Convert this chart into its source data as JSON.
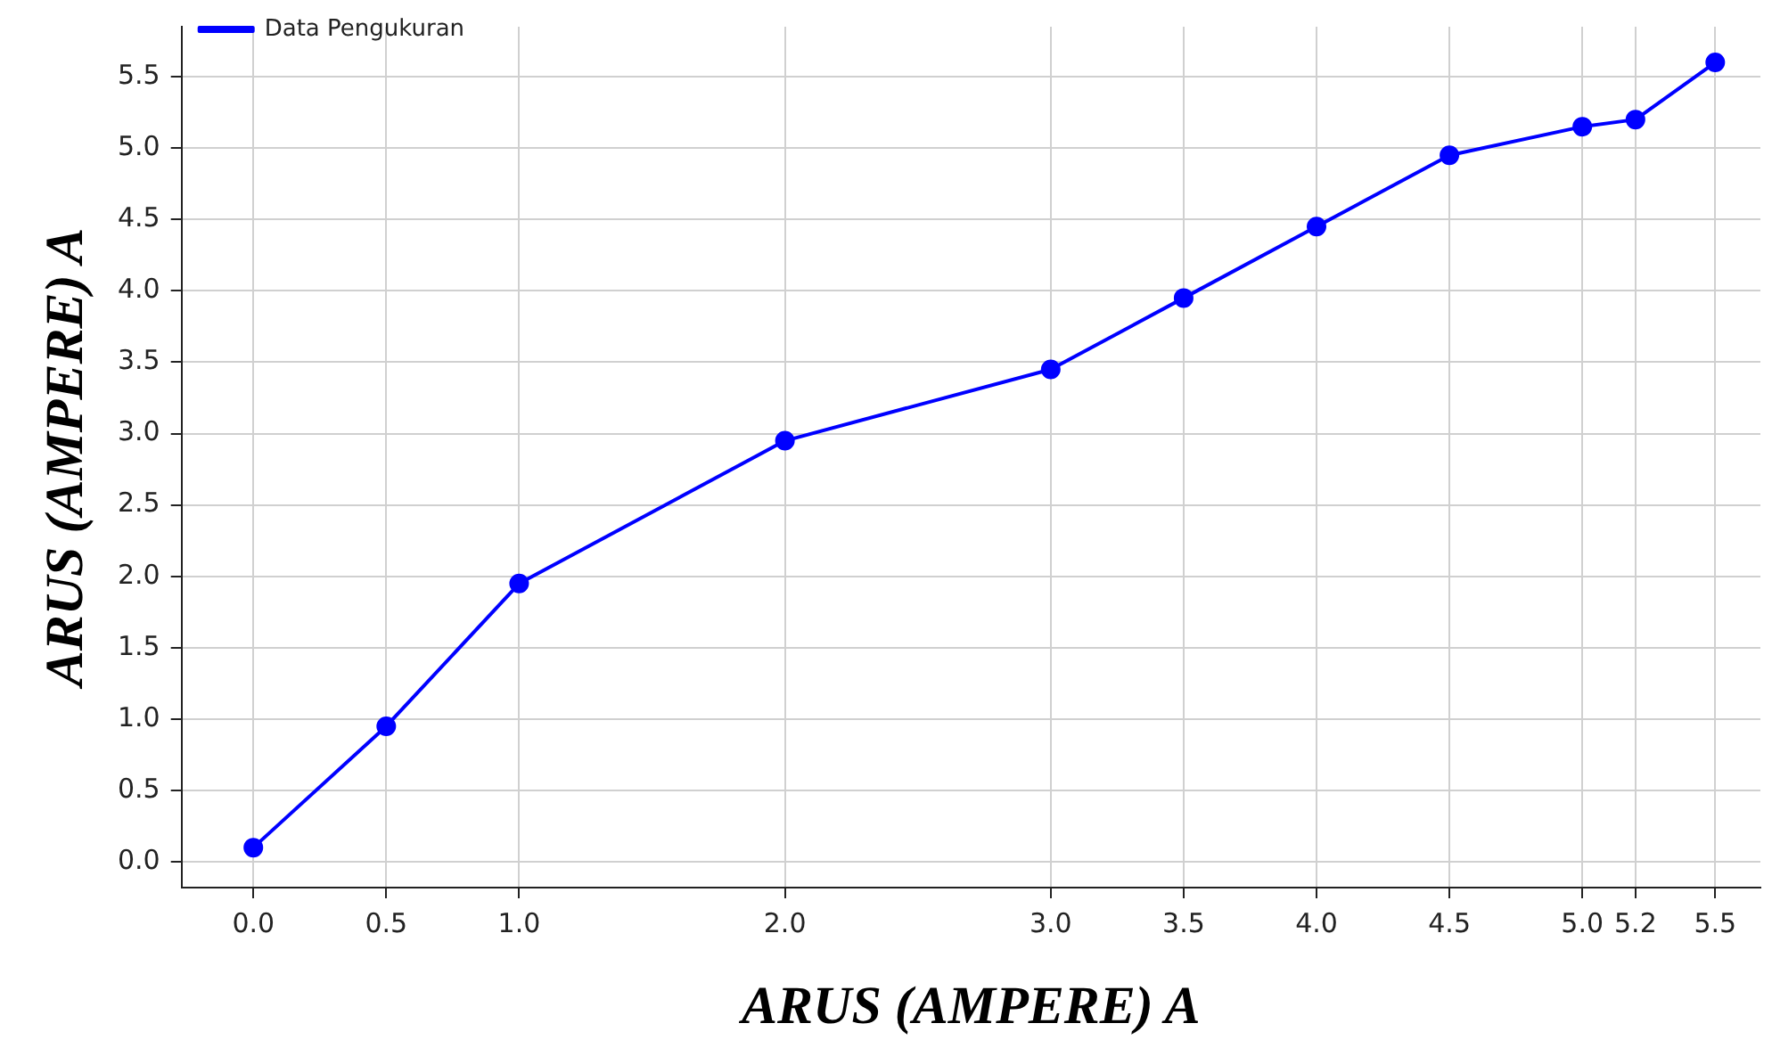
{
  "chart_data": {
    "type": "line",
    "xlabel": "ARUS (AMPERE) A",
    "ylabel": "ARUS (AMPERE) A",
    "x": [
      0,
      0.5,
      1,
      2,
      3,
      3.5,
      4,
      4.5,
      5,
      5.2,
      5.5
    ],
    "series": [
      {
        "name": "Data Pengukuran",
        "color": "#0000ff",
        "values": [
          0.1,
          0.95,
          1.95,
          2.95,
          3.45,
          3.95,
          4.45,
          4.95,
          5.15,
          5.2,
          5.6
        ]
      }
    ],
    "xlim": [
      -0.27,
      5.67
    ],
    "xticks": [
      {
        "value": 0,
        "label": "0.0"
      },
      0.5,
      {
        "value": 1,
        "label": "1.0"
      },
      {
        "value": 2,
        "label": "2.0"
      },
      {
        "value": 3,
        "label": "3.0"
      },
      3.5,
      {
        "value": 4,
        "label": "4.0"
      },
      4.5,
      {
        "value": 5,
        "label": "5.0"
      },
      5.2,
      5.5
    ],
    "ylim": [
      -0.18,
      5.85
    ],
    "yticks": [
      {
        "value": 0,
        "label": "0.0"
      },
      0.5,
      {
        "value": 1,
        "label": "1.0"
      },
      1.5,
      {
        "value": 2,
        "label": "2.0"
      },
      2.5,
      {
        "value": 3,
        "label": "3.0"
      },
      3.5,
      {
        "value": 4,
        "label": "4.0"
      },
      4.5,
      {
        "value": 5,
        "label": "5.0"
      },
      5.5
    ],
    "grid": true,
    "legend": "top left",
    "marker": "circle",
    "line_style": "solid"
  }
}
